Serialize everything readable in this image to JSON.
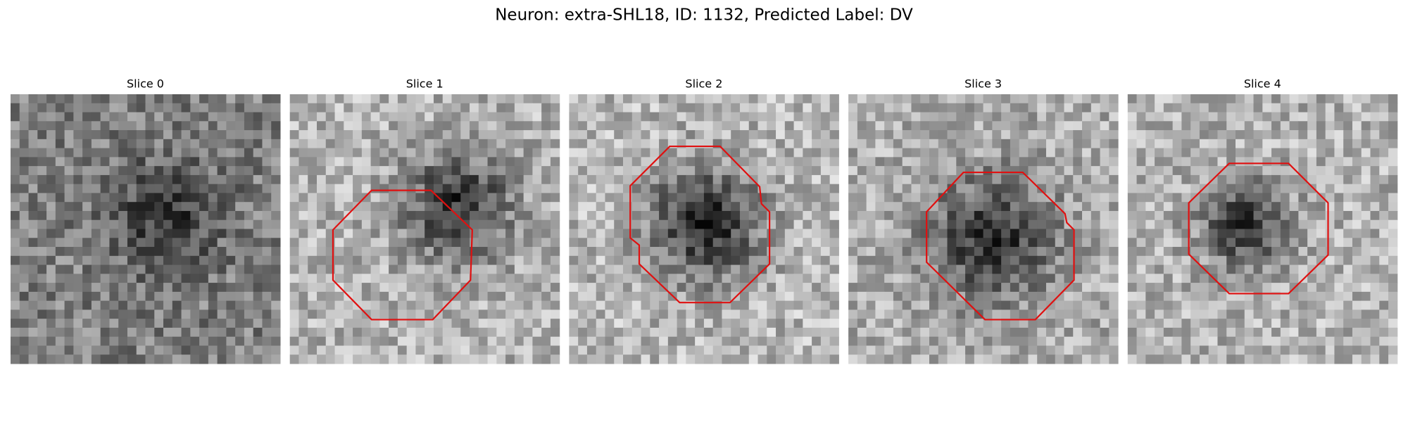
{
  "title": "Neuron: extra-SHL18, ID: 1132, Predicted Label: DV",
  "panels": [
    {
      "title": "Slice 0"
    },
    {
      "title": "Slice 1"
    },
    {
      "title": "Slice 2"
    },
    {
      "title": "Slice 3"
    },
    {
      "title": "Slice 4"
    }
  ]
}
